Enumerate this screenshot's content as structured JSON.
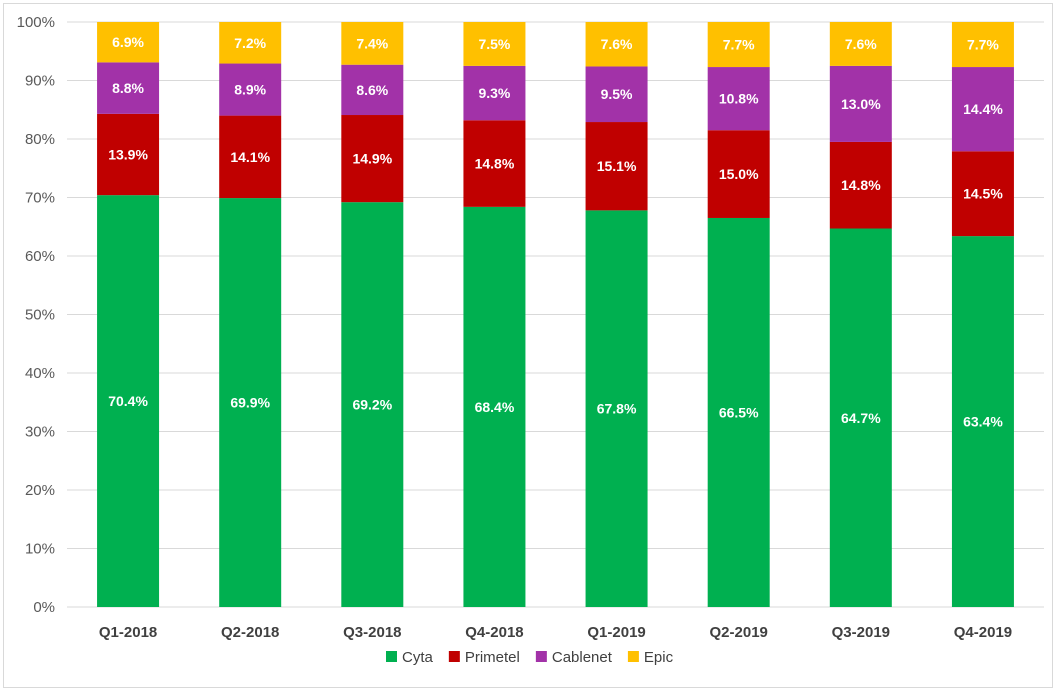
{
  "chart_data": {
    "type": "bar",
    "stacked": true,
    "percent": true,
    "title": "",
    "xlabel": "",
    "ylabel": "",
    "ylim": [
      0,
      100
    ],
    "yticks": [
      "0%",
      "10%",
      "20%",
      "30%",
      "40%",
      "50%",
      "60%",
      "70%",
      "80%",
      "90%",
      "100%"
    ],
    "grid": true,
    "legend_position": "bottom",
    "categories": [
      "Q1-2018",
      "Q2-2018",
      "Q3-2018",
      "Q4-2018",
      "Q1-2019",
      "Q2-2019",
      "Q3-2019",
      "Q4-2019"
    ],
    "series": [
      {
        "name": "Cyta",
        "color": "#00b050",
        "values": [
          70.4,
          69.9,
          69.2,
          68.4,
          67.8,
          66.5,
          64.7,
          63.4
        ],
        "labels": [
          "70.4%",
          "69.9%",
          "69.2%",
          "68.4%",
          "67.8%",
          "66.5%",
          "64.7%",
          "63.4%"
        ]
      },
      {
        "name": "Primetel",
        "color": "#c00000",
        "values": [
          13.9,
          14.1,
          14.9,
          14.8,
          15.1,
          15.0,
          14.8,
          14.5
        ],
        "labels": [
          "13.9%",
          "14.1%",
          "14.9%",
          "14.8%",
          "15.1%",
          "15.0%",
          "14.8%",
          "14.5%"
        ]
      },
      {
        "name": "Cablenet",
        "color": "#a232a8",
        "values": [
          8.8,
          8.9,
          8.6,
          9.3,
          9.5,
          10.8,
          13.0,
          14.4
        ],
        "labels": [
          "8.8%",
          "8.9%",
          "8.6%",
          "9.3%",
          "9.5%",
          "10.8%",
          "13.0%",
          "14.4%"
        ]
      },
      {
        "name": "Epic",
        "color": "#ffc000",
        "values": [
          6.9,
          7.2,
          7.4,
          7.5,
          7.6,
          7.7,
          7.6,
          7.7
        ],
        "labels": [
          "6.9%",
          "7.2%",
          "7.4%",
          "7.5%",
          "7.6%",
          "7.7%",
          "7.6%",
          "7.7%"
        ]
      }
    ]
  }
}
